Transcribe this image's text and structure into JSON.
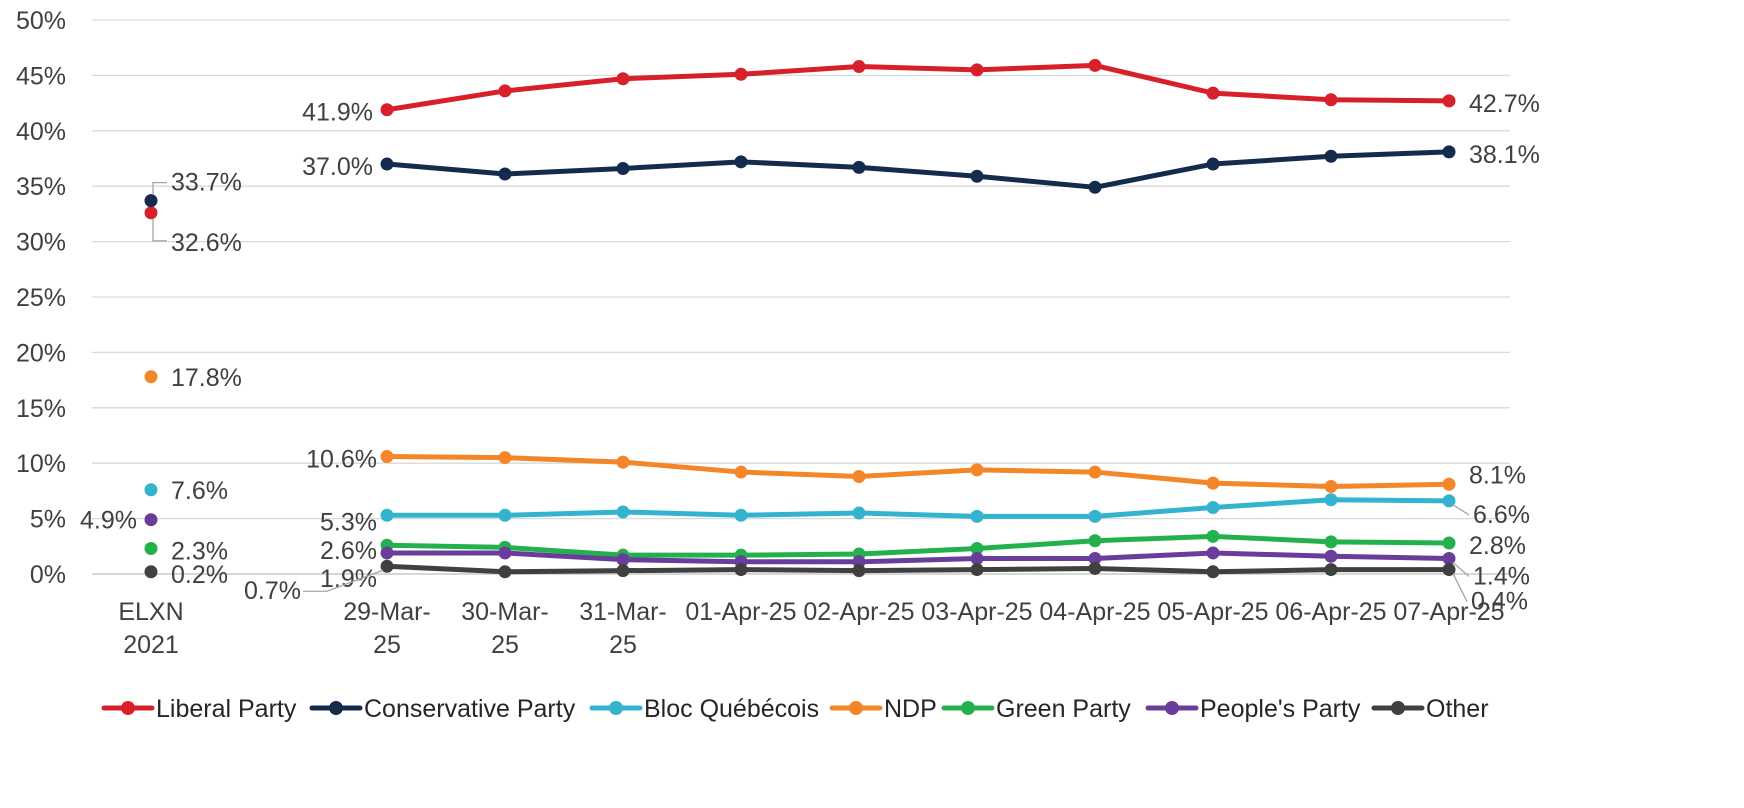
{
  "chart_data": {
    "type": "line",
    "ylim": [
      0,
      50
    ],
    "y_ticks": [
      "0%",
      "5%",
      "10%",
      "15%",
      "20%",
      "25%",
      "30%",
      "35%",
      "40%",
      "45%",
      "50%"
    ],
    "grid": true,
    "legend_position": "bottom",
    "categories": [
      "29-Mar-25",
      "30-Mar-25",
      "31-Mar-25",
      "01-Apr-25",
      "02-Apr-25",
      "03-Apr-25",
      "04-Apr-25",
      "05-Apr-25",
      "06-Apr-25",
      "07-Apr-25"
    ],
    "category_tick_labels": [
      [
        "29-Mar-",
        "25"
      ],
      [
        "30-Mar-",
        "25"
      ],
      [
        "31-Mar-",
        "25"
      ],
      [
        "01-Apr-25"
      ],
      [
        "02-Apr-25"
      ],
      [
        "03-Apr-25"
      ],
      [
        "04-Apr-25"
      ],
      [
        "05-Apr-25"
      ],
      [
        "06-Apr-25"
      ],
      [
        "07-Apr-25"
      ]
    ],
    "election_label": [
      "ELXN",
      "2021"
    ],
    "series": [
      {
        "name": "Liberal Party",
        "color": "#D7202A",
        "election": 32.6,
        "election_label": "32.6%",
        "values": [
          41.9,
          43.6,
          44.7,
          45.1,
          45.8,
          45.5,
          45.9,
          43.4,
          42.8,
          42.7
        ],
        "first_label": "41.9%",
        "last_label": "42.7%"
      },
      {
        "name": "Conservative Party",
        "color": "#142B4E",
        "election": 33.7,
        "election_label": "33.7%",
        "values": [
          37.0,
          36.1,
          36.6,
          37.2,
          36.7,
          35.9,
          34.9,
          37.0,
          37.7,
          38.1
        ],
        "first_label": "37.0%",
        "last_label": "38.1%"
      },
      {
        "name": "Bloc Québécois",
        "color": "#34B3CF",
        "election": 7.6,
        "election_label": "7.6%",
        "values": [
          5.3,
          5.3,
          5.6,
          5.3,
          5.5,
          5.2,
          5.2,
          6.0,
          6.7,
          6.6
        ],
        "first_label": "5.3%",
        "last_label": "6.6%"
      },
      {
        "name": "NDP",
        "color": "#F4862A",
        "election": 17.8,
        "election_label": "17.8%",
        "values": [
          10.6,
          10.5,
          10.1,
          9.2,
          8.8,
          9.4,
          9.2,
          8.2,
          7.9,
          8.1
        ],
        "first_label": "10.6%",
        "last_label": "8.1%"
      },
      {
        "name": "Green Party",
        "color": "#23B14D",
        "election": 2.3,
        "election_label": "2.3%",
        "values": [
          2.6,
          2.4,
          1.7,
          1.7,
          1.8,
          2.3,
          3.0,
          3.4,
          2.9,
          2.8
        ],
        "first_label": "2.6%",
        "last_label": "2.8%"
      },
      {
        "name": "People's Party",
        "color": "#6A3D9A",
        "election": 4.9,
        "election_label": "4.9%",
        "values": [
          1.9,
          1.9,
          1.3,
          1.1,
          1.1,
          1.4,
          1.4,
          1.9,
          1.6,
          1.4
        ],
        "first_label": "1.9%",
        "last_label": "1.4%"
      },
      {
        "name": "Other",
        "color": "#404040",
        "election": 0.2,
        "election_label": "0.2%",
        "values": [
          0.7,
          0.2,
          0.3,
          0.4,
          0.3,
          0.4,
          0.5,
          0.2,
          0.4,
          0.4
        ],
        "first_label": "0.7%",
        "last_label": "0.4%"
      }
    ]
  }
}
